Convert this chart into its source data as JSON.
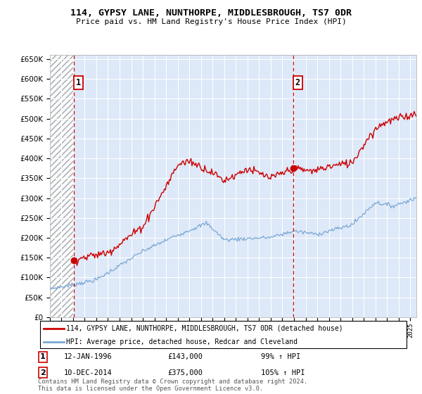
{
  "title": "114, GYPSY LANE, NUNTHORPE, MIDDLESBROUGH, TS7 0DR",
  "subtitle": "Price paid vs. HM Land Registry's House Price Index (HPI)",
  "legend_line1": "114, GYPSY LANE, NUNTHORPE, MIDDLESBROUGH, TS7 0DR (detached house)",
  "legend_line2": "HPI: Average price, detached house, Redcar and Cleveland",
  "annotation1_label": "1",
  "annotation1_date": "12-JAN-1996",
  "annotation1_price": "£143,000",
  "annotation1_hpi": "99% ↑ HPI",
  "annotation2_label": "2",
  "annotation2_date": "10-DEC-2014",
  "annotation2_price": "£375,000",
  "annotation2_hpi": "105% ↑ HPI",
  "footer": "Contains HM Land Registry data © Crown copyright and database right 2024.\nThis data is licensed under the Open Government Licence v3.0.",
  "property_color": "#cc0000",
  "hpi_color": "#7aa8d4",
  "background_plot": "#dde8f8",
  "ylim": [
    0,
    660000
  ],
  "yticks": [
    0,
    50000,
    100000,
    150000,
    200000,
    250000,
    300000,
    350000,
    400000,
    450000,
    500000,
    550000,
    600000,
    650000
  ],
  "vline1_x": 1996.05,
  "vline2_x": 2014.92,
  "sale1_x": 1996.05,
  "sale1_y": 143000,
  "sale2_x": 2014.92,
  "sale2_y": 375000,
  "xmin": 1994.0,
  "xmax": 2025.5
}
